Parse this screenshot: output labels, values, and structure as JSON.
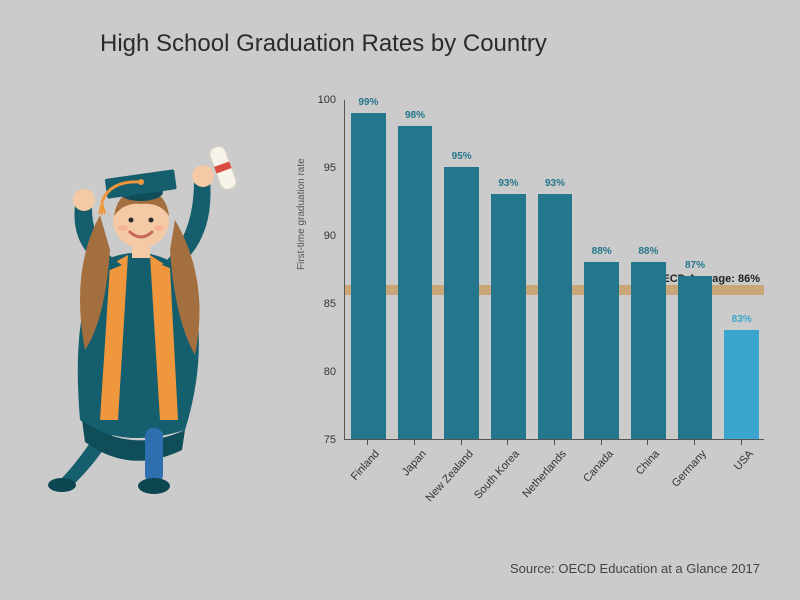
{
  "title": {
    "text": "High School Graduation Rates by Country",
    "fontsize": 24,
    "color": "#2b2b2b"
  },
  "source": "Source: OECD Education at a Glance 2017",
  "chart": {
    "type": "bar",
    "ylabel": "First-time graduation rate",
    "ylim": [
      75,
      100
    ],
    "ytick_step": 5,
    "yticks": [
      75,
      80,
      85,
      90,
      95,
      100
    ],
    "background_color": "#cbcbcb",
    "axis_color": "#555555",
    "bar_width_ratio": 0.74,
    "categories": [
      "Finland",
      "Japan",
      "New Zealand",
      "South Korea",
      "Netherlands",
      "Canada",
      "China",
      "Germany",
      "USA"
    ],
    "values": [
      99,
      98,
      95,
      93,
      93,
      88,
      88,
      87,
      83
    ],
    "value_labels": [
      "99%",
      "98%",
      "95%",
      "93%",
      "93%",
      "88%",
      "88%",
      "87%",
      "83%"
    ],
    "bar_colors": [
      "#23768b",
      "#23768b",
      "#23768b",
      "#23768b",
      "#23768b",
      "#23768b",
      "#23768b",
      "#23768b",
      "#3aa6d0"
    ],
    "label_colors": [
      "#23768b",
      "#23768b",
      "#23768b",
      "#23768b",
      "#23768b",
      "#23768b",
      "#23768b",
      "#23768b",
      "#3aa6d0"
    ],
    "average_line": {
      "value": 86,
      "label": "OECD Average: 86%",
      "color": "#c89a5b"
    },
    "label_fontsize": 10,
    "tick_fontsize": 11,
    "xlabel_rotation": -48
  },
  "illustration": {
    "description": "graduate-girl",
    "gown_color": "#155e6d",
    "tassel_sash_color": "#f0973e",
    "hair_color": "#a46f3f",
    "skin_color": "#f4c9a6",
    "diploma_color": "#f7f3ea",
    "ribbon_color": "#d84b3f",
    "cap_color": "#155e6d"
  }
}
